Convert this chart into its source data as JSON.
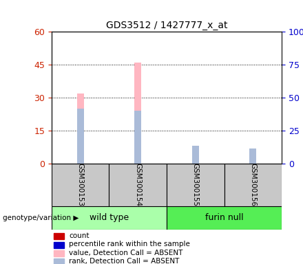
{
  "title": "GDS3512 / 1427777_x_at",
  "samples": [
    "GSM300153",
    "GSM300154",
    "GSM300155",
    "GSM300156"
  ],
  "groups": [
    "wild type",
    "wild type",
    "furin null",
    "furin null"
  ],
  "group_names": [
    "wild type",
    "furin null"
  ],
  "group_colors_light": [
    "#AAFFAA",
    "#55EE55"
  ],
  "value_absent": [
    32,
    46,
    4,
    5
  ],
  "rank_absent": [
    25,
    24,
    8,
    7
  ],
  "ylim_left": [
    0,
    60
  ],
  "ylim_right": [
    0,
    100
  ],
  "yticks_left": [
    0,
    15,
    30,
    45,
    60
  ],
  "yticks_right": [
    0,
    25,
    50,
    75,
    100
  ],
  "ytick_labels_left": [
    "0",
    "15",
    "30",
    "45",
    "60"
  ],
  "ytick_labels_right": [
    "0",
    "25",
    "50",
    "75",
    "100%"
  ],
  "value_absent_color": "#FFB6C1",
  "rank_absent_color": "#AABBD8",
  "count_color": "#CC0000",
  "percentile_color": "#0000CC",
  "left_tick_color": "#CC2200",
  "right_tick_color": "#0000CC",
  "group_label": "genotype/variation",
  "sample_box_color": "#C8C8C8",
  "thin_bar_width": 0.12,
  "rank_bar_width": 0.08
}
